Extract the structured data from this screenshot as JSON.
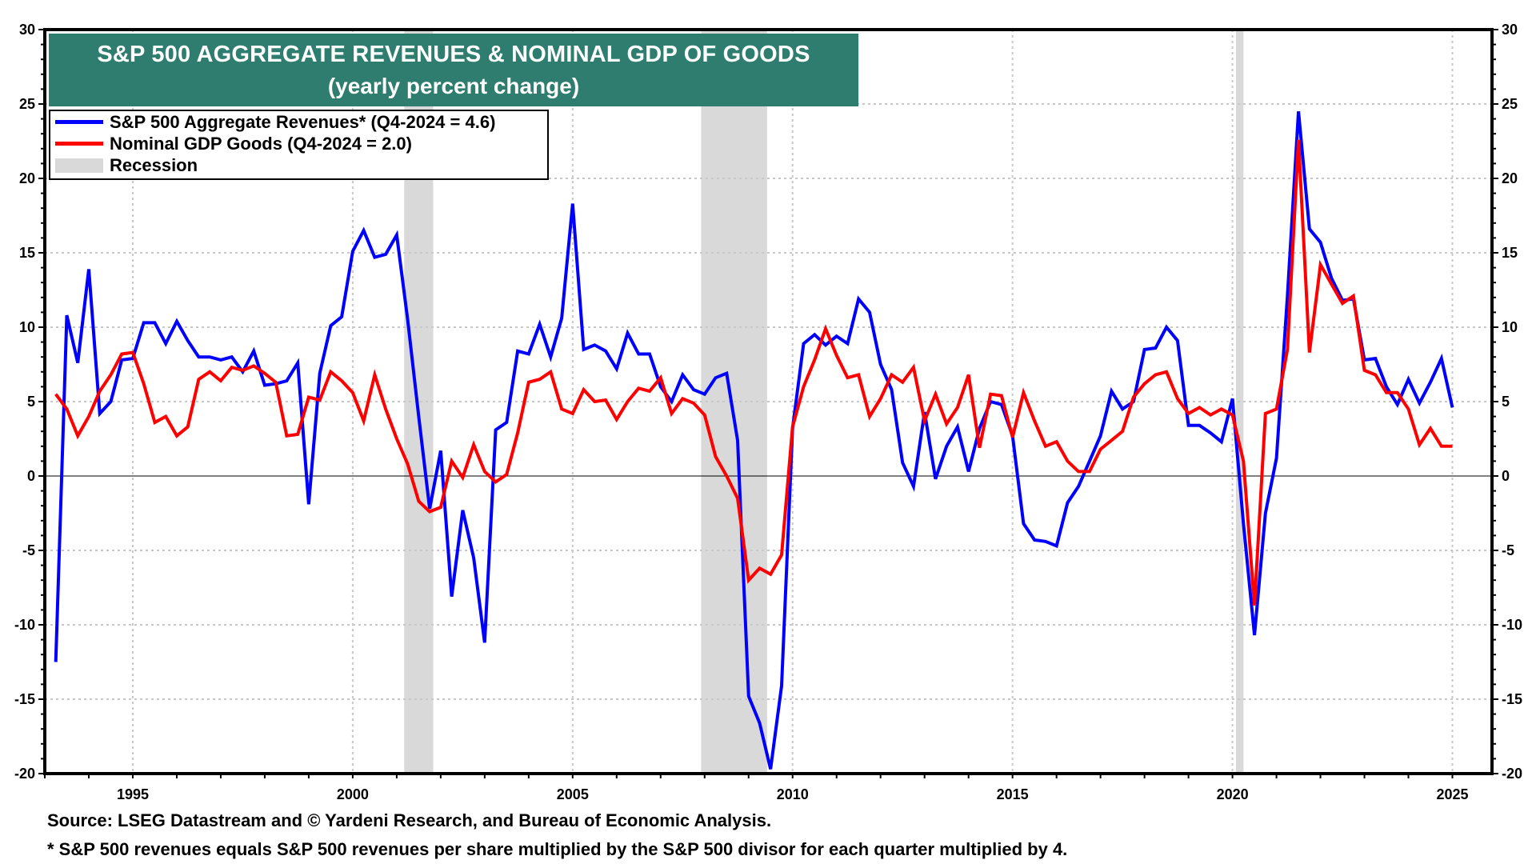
{
  "chart_data": {
    "type": "line",
    "title": "S&P 500 AGGREGATE REVENUES & NOMINAL GDP OF GOODS",
    "subtitle": "(yearly percent change)",
    "xlabel": "",
    "ylabel": "",
    "xlim": [
      1993.0,
      2025.9
    ],
    "ylim": [
      -20,
      30
    ],
    "x_ticks": [
      1995,
      2000,
      2005,
      2010,
      2015,
      2020,
      2025
    ],
    "y_ticks": [
      -20,
      -15,
      -10,
      -5,
      0,
      5,
      10,
      15,
      20,
      25,
      30
    ],
    "grid": true,
    "legend_position": "top-left",
    "x_start": 1993.25,
    "x_step": 0.25,
    "recessions": [
      {
        "label": "Recession",
        "start": 2001.17,
        "end": 2001.83
      },
      {
        "label": "Recession",
        "start": 2007.92,
        "end": 2009.42
      },
      {
        "label": "Recession",
        "start": 2020.08,
        "end": 2020.25
      }
    ],
    "series": [
      {
        "name": "S&P 500 Aggregate Revenues* (Q4-2024 = 4.6)",
        "color": "#0000ff",
        "values": [
          -12.5,
          10.8,
          7.6,
          13.9,
          4.2,
          5.0,
          7.8,
          7.9,
          10.3,
          10.3,
          8.9,
          10.4,
          9.1,
          8.0,
          8.0,
          7.8,
          8.0,
          7.0,
          8.4,
          6.1,
          6.2,
          6.4,
          7.6,
          -1.9,
          6.9,
          10.1,
          10.7,
          15.1,
          16.5,
          14.7,
          14.9,
          16.2,
          10.5,
          4.0,
          -2.2,
          1.7,
          -8.1,
          -2.3,
          -5.5,
          -11.2,
          3.1,
          3.6,
          8.4,
          8.2,
          10.2,
          8.0,
          10.6,
          18.3,
          8.5,
          8.8,
          8.4,
          7.2,
          9.6,
          8.2,
          8.2,
          6.0,
          5.0,
          6.8,
          5.8,
          5.5,
          6.6,
          6.9,
          2.4,
          -14.8,
          -16.6,
          -19.7,
          -14.1,
          3.2,
          8.9,
          9.5,
          8.8,
          9.4,
          8.9,
          11.9,
          11.0,
          7.5,
          5.8,
          0.9,
          -0.7,
          4.3,
          -0.2,
          2.0,
          3.3,
          0.3,
          3.2,
          5.0,
          4.8,
          2.7,
          -3.2,
          -4.3,
          -4.4,
          -4.7,
          -1.8,
          -0.7,
          1.0,
          2.7,
          5.7,
          4.5,
          5.0,
          8.5,
          8.6,
          10.0,
          9.1,
          3.4,
          3.4,
          2.9,
          2.3,
          5.2,
          -3.2,
          -10.7,
          -2.5,
          1.2,
          12.1,
          24.5,
          16.6,
          15.7,
          13.3,
          11.8,
          11.9,
          7.8,
          7.9,
          6.0,
          4.8,
          6.5,
          4.9,
          6.3,
          7.9,
          4.6
        ]
      },
      {
        "name": "Nominal GDP Goods (Q4-2024 = 2.0)",
        "color": "#ff0000",
        "values": [
          5.5,
          4.5,
          2.7,
          4.0,
          5.7,
          6.8,
          8.2,
          8.3,
          6.2,
          3.6,
          4.0,
          2.7,
          3.3,
          6.5,
          7.0,
          6.4,
          7.3,
          7.1,
          7.4,
          6.9,
          6.3,
          2.7,
          2.8,
          5.3,
          5.1,
          7.0,
          6.4,
          5.6,
          3.7,
          6.8,
          4.5,
          2.5,
          0.8,
          -1.7,
          -2.4,
          -2.1,
          1.0,
          -0.1,
          2.1,
          0.3,
          -0.4,
          0.1,
          2.9,
          6.3,
          6.5,
          7.0,
          4.5,
          4.2,
          5.8,
          5.0,
          5.1,
          3.8,
          5.0,
          5.9,
          5.7,
          6.6,
          4.2,
          5.2,
          4.9,
          4.1,
          1.3,
          0.0,
          -1.5,
          -7.0,
          -6.2,
          -6.6,
          -5.3,
          3.3,
          6.0,
          7.8,
          9.9,
          8.1,
          6.6,
          6.8,
          4.0,
          5.2,
          6.8,
          6.3,
          7.3,
          3.7,
          5.5,
          3.5,
          4.6,
          6.8,
          1.9,
          5.5,
          5.4,
          2.6,
          5.6,
          3.7,
          2.0,
          2.3,
          1.0,
          0.3,
          0.3,
          1.8,
          2.4,
          3.0,
          5.3,
          6.2,
          6.8,
          7.0,
          5.2,
          4.2,
          4.6,
          4.1,
          4.5,
          4.1,
          1.0,
          -8.7,
          4.2,
          4.5,
          8.5,
          22.6,
          8.3,
          14.2,
          12.9,
          11.6,
          12.1,
          7.1,
          6.8,
          5.6,
          5.6,
          4.5,
          2.1,
          3.2,
          2.0,
          2.0
        ]
      }
    ]
  },
  "title": {
    "line1": "S&P 500 AGGREGATE REVENUES & NOMINAL GDP OF GOODS",
    "line2": "(yearly percent change)"
  },
  "legend": {
    "items": [
      {
        "label": "S&P 500 Aggregate Revenues* (Q4-2024 = 4.6)",
        "color": "#0000ff"
      },
      {
        "label": "Nominal GDP Goods (Q4-2024 = 2.0)",
        "color": "#ff0000"
      },
      {
        "label": "Recession",
        "color": "#d9d9d9"
      }
    ]
  },
  "footer": {
    "source": "Source: LSEG Datastream and © Yardeni Research, and Bureau of Economic Analysis.",
    "note": "* S&P 500 revenues equals S&P 500 revenues per share multiplied by the S&P 500 divisor for each quarter multiplied by 4."
  },
  "colors": {
    "title_bg": "#2e7d6f",
    "recession": "#d9d9d9",
    "grid": "#c8c8c8"
  }
}
